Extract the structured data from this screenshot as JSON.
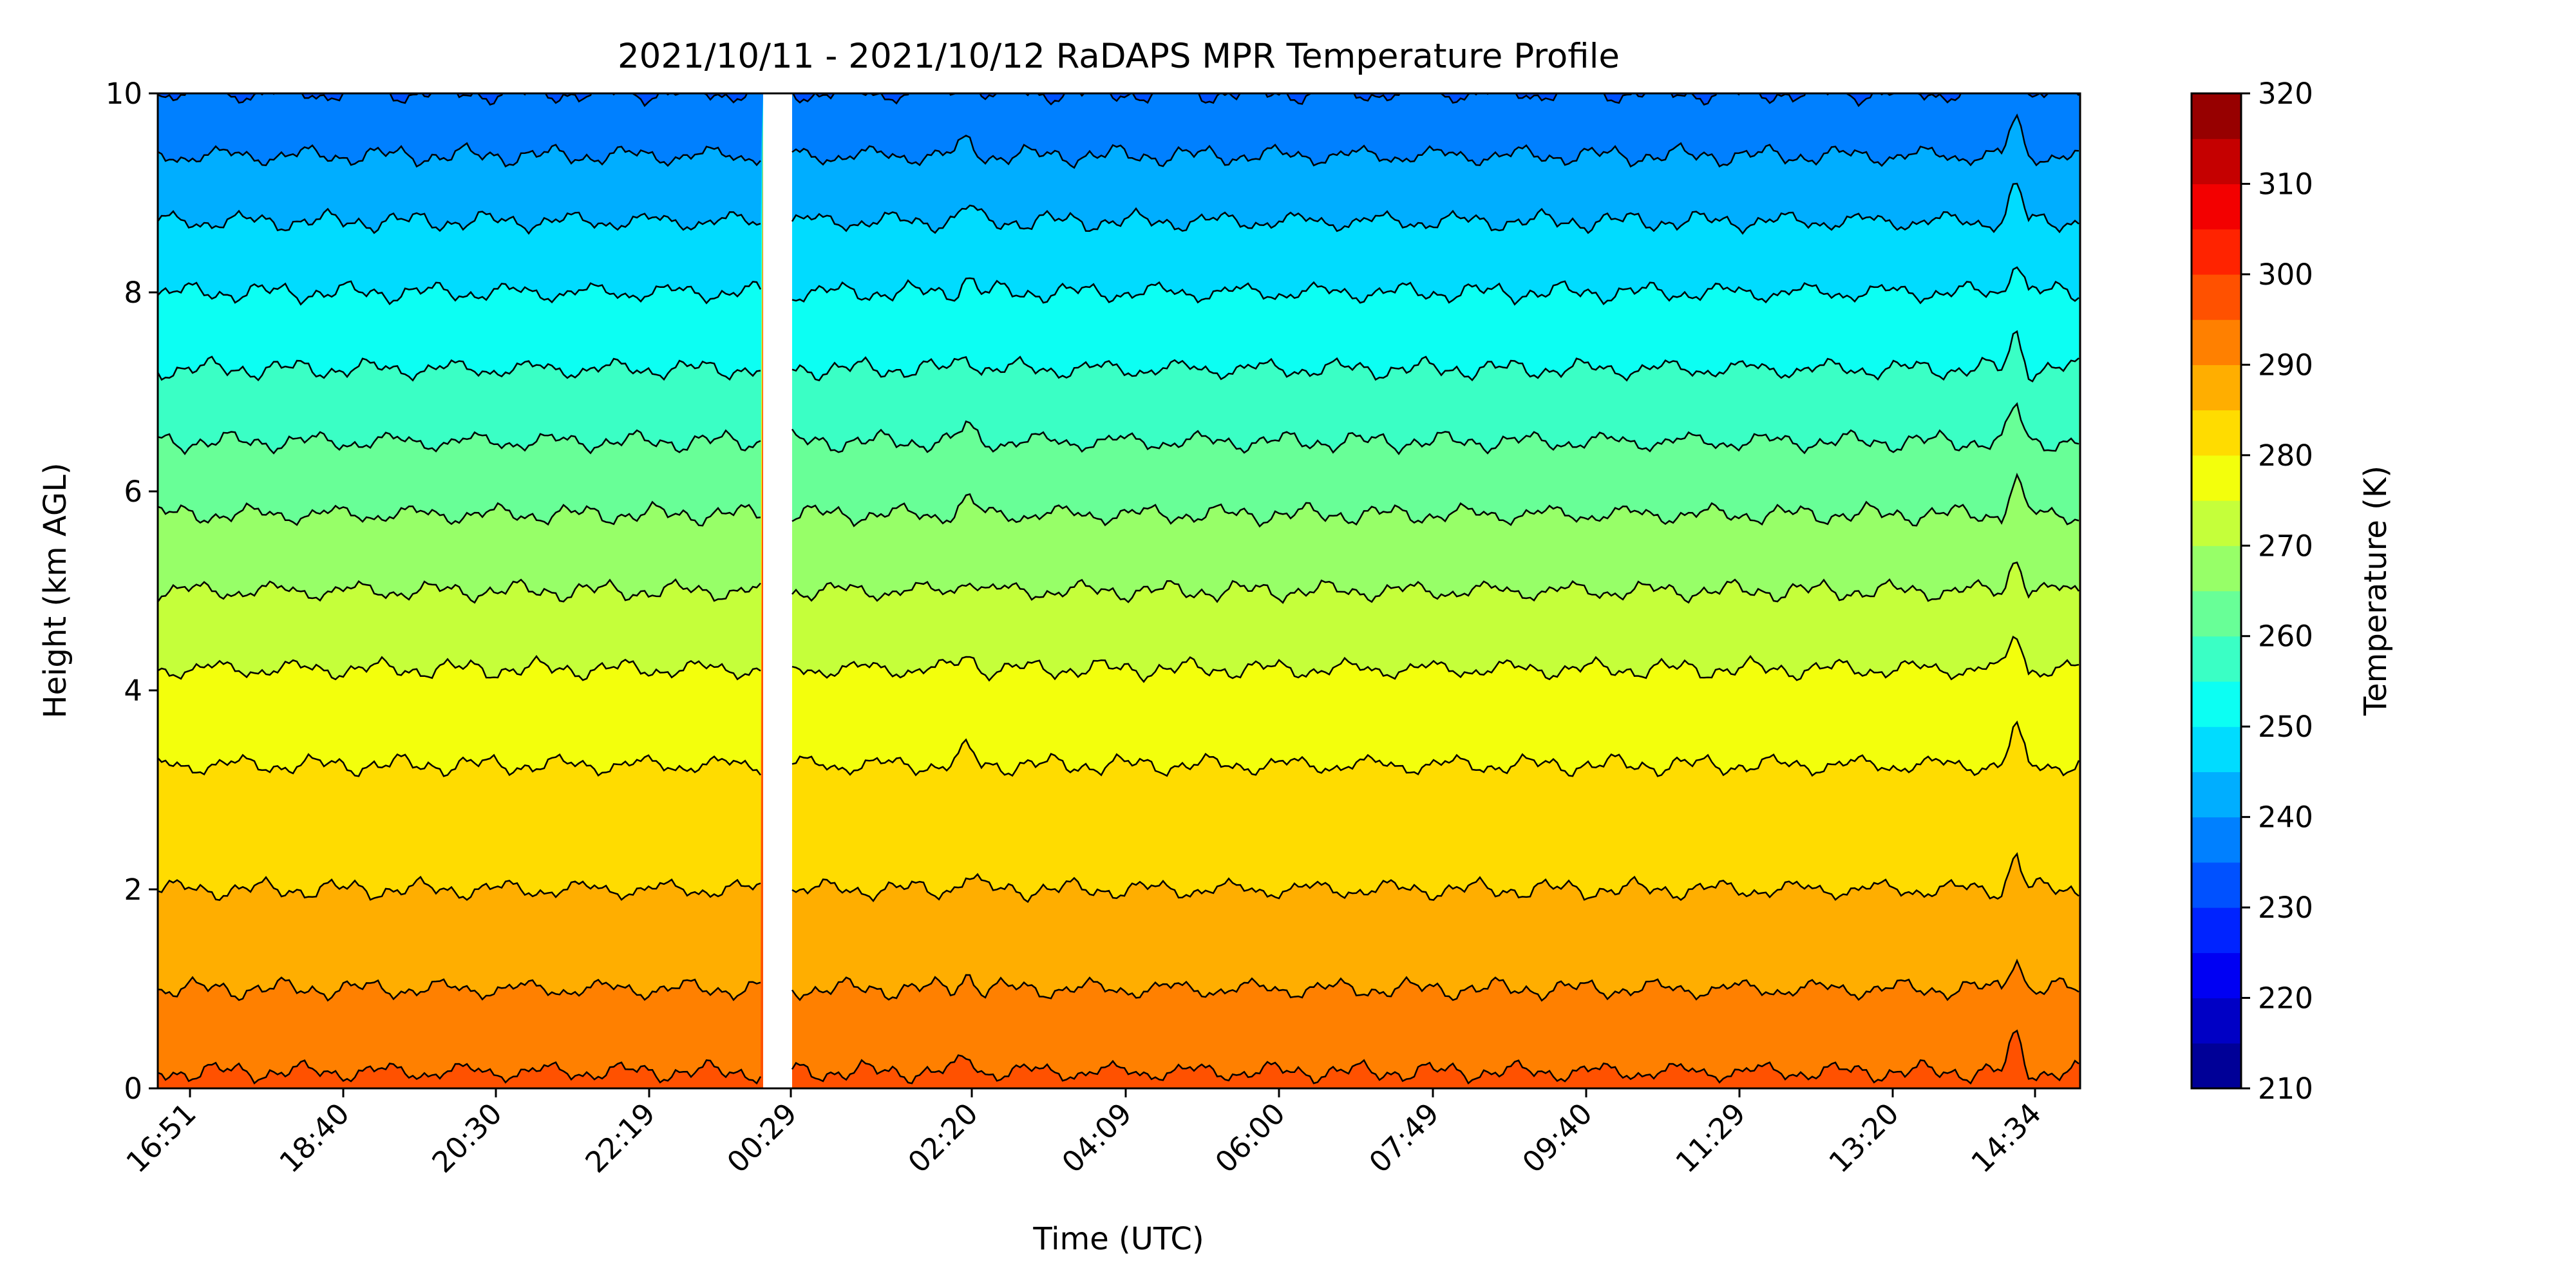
{
  "chart_data": {
    "type": "heatmap",
    "title": "2021/10/11 - 2021/10/12 RaDAPS MPR Temperature Profile",
    "xlabel": "Time (UTC)",
    "ylabel": "Height (km AGL)",
    "ylim": [
      0,
      10
    ],
    "yticks": [
      "0",
      "2",
      "4",
      "6",
      "8",
      "10"
    ],
    "xticks": [
      "16:51",
      "18:40",
      "20:30",
      "22:19",
      "00:29",
      "02:20",
      "04:09",
      "06:00",
      "07:49",
      "09:40",
      "11:29",
      "13:20",
      "14:34"
    ],
    "data_gap": [
      "23:59",
      "00:16"
    ],
    "colorbar": {
      "label": "Temperature (K)",
      "ticks": [
        "210",
        "220",
        "230",
        "240",
        "250",
        "260",
        "270",
        "280",
        "290",
        "300",
        "310",
        "320"
      ],
      "range": [
        210,
        320
      ],
      "step": 5,
      "colormap": "jet"
    },
    "contour_levels_K": [
      295,
      290,
      285,
      280,
      275,
      270,
      265,
      260,
      255,
      250,
      245,
      240,
      235
    ],
    "series": [
      {
        "x": [
          "16:51",
          "18:40",
          "20:30",
          "22:19",
          "00:29",
          "02:20",
          "04:09",
          "06:00",
          "07:49",
          "09:40",
          "11:29",
          "13:20",
          "14:34"
        ],
        "heights_km": [
          0,
          1,
          2,
          3,
          4,
          5,
          6,
          7,
          8,
          9,
          10
        ]
      }
    ],
    "profile_K": {
      "heights_km": [
        0.0,
        0.5,
        1.0,
        1.5,
        2.0,
        2.5,
        3.0,
        3.5,
        4.0,
        4.5,
        5.0,
        6.0,
        7.0,
        8.0,
        9.0,
        10.0
      ],
      "temperature_K": [
        296,
        293,
        290,
        287,
        285,
        283,
        281,
        279,
        276.5,
        273,
        270,
        263.5,
        256.5,
        250,
        243,
        235
      ]
    }
  },
  "colors": {
    "background": "#ffffff",
    "axes": "#000000",
    "contour_line": "#000000"
  }
}
